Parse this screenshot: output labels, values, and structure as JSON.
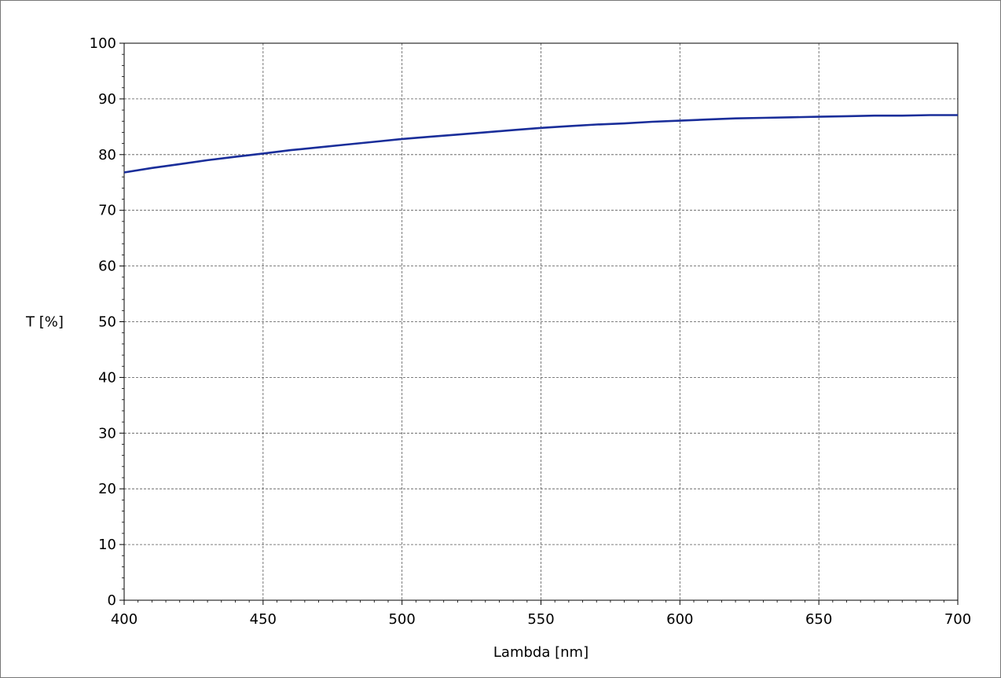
{
  "chart_data": {
    "type": "line",
    "title": "",
    "xlabel": "Lambda [nm]",
    "ylabel": "T [%]",
    "xlim": [
      400,
      700
    ],
    "ylim": [
      0,
      100
    ],
    "x_ticks": [
      "400",
      "450",
      "500",
      "550",
      "600",
      "650",
      "700"
    ],
    "y_ticks": [
      "0",
      "10",
      "20",
      "30",
      "40",
      "50",
      "60",
      "70",
      "80",
      "90",
      "100"
    ],
    "grid": true,
    "legend": "none",
    "series": [
      {
        "color": "#1a2e9a",
        "x": [
          400,
          410,
          420,
          430,
          440,
          450,
          460,
          470,
          480,
          490,
          500,
          510,
          520,
          530,
          540,
          550,
          560,
          570,
          580,
          590,
          600,
          610,
          620,
          630,
          640,
          650,
          660,
          670,
          680,
          690,
          700
        ],
        "y": [
          76.8,
          77.6,
          78.3,
          79.0,
          79.6,
          80.2,
          80.8,
          81.3,
          81.8,
          82.3,
          82.8,
          83.2,
          83.6,
          84.0,
          84.4,
          84.8,
          85.1,
          85.4,
          85.6,
          85.9,
          86.1,
          86.3,
          86.5,
          86.6,
          86.7,
          86.8,
          86.9,
          87.0,
          87.0,
          87.1,
          87.1
        ]
      }
    ]
  }
}
